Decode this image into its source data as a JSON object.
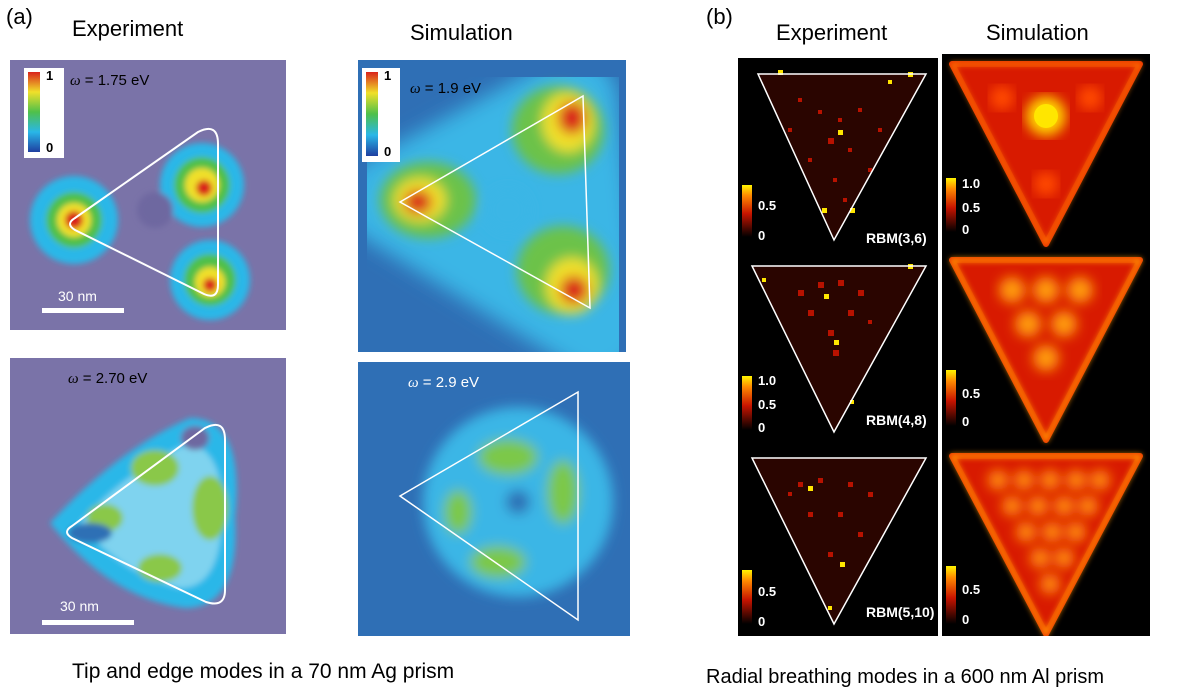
{
  "panel_a": {
    "label": "(a)",
    "col_experiment": "Experiment",
    "col_simulation": "Simulation",
    "maps": [
      {
        "omega_symbol": "ω",
        "omega_value": " = 1.75 eV",
        "cb_max": "1",
        "cb_min": "0",
        "scale_text": "30 nm"
      },
      {
        "omega_symbol": "ω",
        "omega_value": " = 1.9 eV",
        "cb_max": "1",
        "cb_min": "0"
      },
      {
        "omega_symbol": "ω",
        "omega_value": " = 2.70 eV",
        "scale_text": "30 nm"
      },
      {
        "omega_symbol": "ω",
        "omega_value": " = 2.9 eV"
      }
    ],
    "caption": "Tip and edge modes in a 70 nm Ag prism"
  },
  "panel_b": {
    "label": "(b)",
    "col_experiment": "Experiment",
    "col_simulation": "Simulation",
    "rows": [
      {
        "mode": "RBM(3,6)",
        "exp_cb_top": "0.5",
        "exp_cb_bottom": "0",
        "sim_cb_top": "1.0",
        "sim_cb_mid": "0.5",
        "sim_cb_bottom": "0"
      },
      {
        "mode": "RBM(4,8)",
        "exp_cb_top": "1.0",
        "exp_cb_mid": "0.5",
        "exp_cb_bottom": "0",
        "sim_cb_top": "0.5",
        "sim_cb_bottom": "0"
      },
      {
        "mode": "RBM(5,10)",
        "exp_cb_top": "0.5",
        "exp_cb_bottom": "0",
        "sim_cb_top": "0.5",
        "sim_cb_bottom": "0"
      }
    ],
    "caption": "Radial breathing modes in a 600 nm Al prism"
  },
  "colors": {
    "exp_background": "#7a73a8",
    "sim_background": "#2f6fb5",
    "heat_dark": "#000000",
    "heat_red": "#e01a00",
    "heat_yellow": "#ffe600"
  }
}
